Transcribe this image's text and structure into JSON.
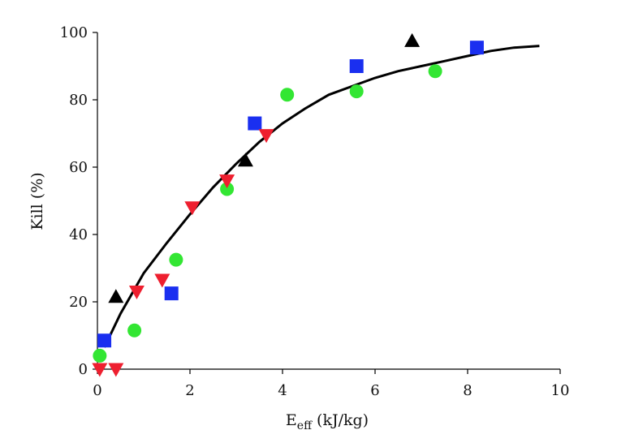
{
  "chart_data": {
    "type": "scatter",
    "title": "",
    "xlabel": "E",
    "xlabel_subscript": "eff",
    "xlabel_unit": " (kJ/kg)",
    "ylabel": "Kill (%)",
    "xlim": [
      0,
      10
    ],
    "ylim": [
      0,
      100
    ],
    "xticks": [
      "0",
      "2",
      "4",
      "6",
      "8",
      "10"
    ],
    "yticks": [
      "0",
      "20",
      "40",
      "60",
      "80",
      "100"
    ],
    "grid": false,
    "legend": "none",
    "series": [
      {
        "marker": "triangle-up",
        "color": "#000000",
        "points": [
          [
            0.4,
            21.5
          ],
          [
            3.2,
            62.0
          ],
          [
            6.8,
            97.5
          ]
        ]
      },
      {
        "marker": "square",
        "color": "#1a2ff0",
        "points": [
          [
            0.15,
            8.5
          ],
          [
            1.6,
            22.5
          ],
          [
            3.4,
            73.0
          ],
          [
            5.6,
            90.0
          ],
          [
            8.2,
            95.5
          ]
        ]
      },
      {
        "marker": "circle",
        "color": "#33e633",
        "points": [
          [
            0.05,
            4.0
          ],
          [
            0.8,
            11.5
          ],
          [
            1.7,
            32.5
          ],
          [
            2.8,
            53.5
          ],
          [
            4.1,
            81.5
          ],
          [
            5.6,
            82.5
          ],
          [
            7.3,
            88.5
          ]
        ]
      },
      {
        "marker": "triangle-down",
        "color": "#ee1f2f",
        "points": [
          [
            0.05,
            0.0
          ],
          [
            0.4,
            0.0
          ],
          [
            0.85,
            23.0
          ],
          [
            1.4,
            26.5
          ],
          [
            2.05,
            48.0
          ],
          [
            2.8,
            56.0
          ],
          [
            3.65,
            69.5
          ]
        ]
      }
    ],
    "fit_curve": {
      "type": "exponential-saturation",
      "color": "#000000",
      "x": [
        0.15,
        0.5,
        1.0,
        1.5,
        2.0,
        2.5,
        3.0,
        3.5,
        4.0,
        4.5,
        5.0,
        5.5,
        6.0,
        6.5,
        7.0,
        7.5,
        8.0,
        8.5,
        9.0,
        9.55
      ],
      "y": [
        6.5,
        16.5,
        28.5,
        37.5,
        46.0,
        54.0,
        61.0,
        67.5,
        73.0,
        77.5,
        81.5,
        84.0,
        86.5,
        88.5,
        90.0,
        91.5,
        93.0,
        94.5,
        95.5,
        96.0
      ]
    }
  }
}
